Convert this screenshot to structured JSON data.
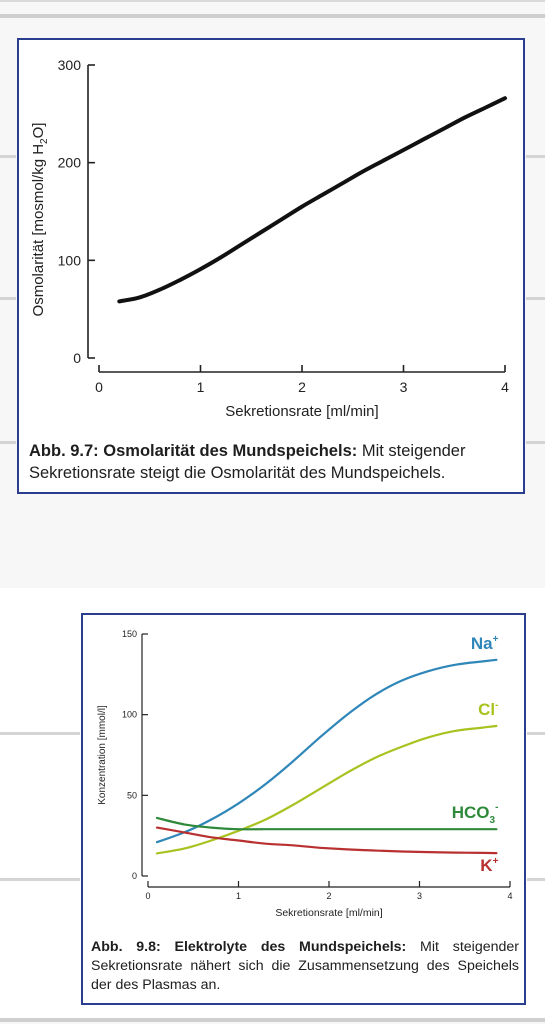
{
  "chart_data": [
    {
      "type": "line",
      "xlabel": "Sekretionsrate [ml/min]",
      "ylabel": "Osmolarität [mosmol/kg H2O]",
      "ylabel_main": "Osmolarität [mosmol/kg H",
      "ylabel_sub": "2",
      "ylabel_end": "O]",
      "xlim": [
        0,
        4
      ],
      "ylim": [
        0,
        300
      ],
      "x_ticks": [
        "0",
        "1",
        "2",
        "3",
        "4"
      ],
      "y_ticks": [
        "0",
        "100",
        "200",
        "300"
      ],
      "grid": false,
      "series": [
        {
          "color": "#111111",
          "x": [
            0.2,
            0.4,
            0.6,
            0.8,
            1.0,
            1.2,
            1.4,
            1.6,
            1.8,
            2.0,
            2.2,
            2.4,
            2.6,
            2.8,
            3.0,
            3.2,
            3.4,
            3.6,
            3.8,
            4.0
          ],
          "y": [
            58,
            62,
            70,
            80,
            91,
            103,
            116,
            129,
            142,
            155,
            167,
            179,
            191,
            202,
            213,
            224,
            235,
            246,
            256,
            266
          ]
        }
      ]
    },
    {
      "type": "line",
      "xlabel": "Sekretionsrate [ml/min]",
      "ylabel": "Konzentration [mmol/l]",
      "xlim": [
        0,
        4
      ],
      "ylim": [
        0,
        150
      ],
      "x_ticks": [
        "0",
        "1",
        "2",
        "3",
        "4"
      ],
      "y_ticks": [
        "0",
        "50",
        "100",
        "150"
      ],
      "grid": false,
      "series": [
        {
          "name": "Na+",
          "label_main": "Na",
          "label_sup": "+",
          "color": "#2f86b8",
          "x": [
            0.1,
            0.4,
            0.7,
            1.0,
            1.3,
            1.6,
            1.9,
            2.2,
            2.5,
            2.8,
            3.1,
            3.4,
            3.7,
            3.85
          ],
          "y": [
            21,
            27,
            35,
            45,
            57,
            71,
            86,
            100,
            112,
            121,
            127,
            131,
            133,
            134
          ]
        },
        {
          "name": "Cl-",
          "label_main": "Cl",
          "label_sup": "-",
          "color": "#a9c21f",
          "x": [
            0.1,
            0.4,
            0.7,
            1.0,
            1.3,
            1.6,
            1.9,
            2.2,
            2.5,
            2.8,
            3.1,
            3.4,
            3.7,
            3.85
          ],
          "y": [
            14,
            17,
            22,
            28,
            35,
            44,
            54,
            64,
            73,
            80,
            86,
            90,
            92,
            93
          ]
        },
        {
          "name": "HCO3-",
          "label_main": "HCO",
          "label_sub": "3",
          "label_sup": "-",
          "color": "#2e8a3a",
          "x": [
            0.1,
            0.4,
            0.7,
            1.0,
            1.3,
            1.6,
            1.9,
            2.2,
            2.5,
            2.8,
            3.1,
            3.4,
            3.7,
            3.85
          ],
          "y": [
            36,
            32,
            30,
            29,
            29,
            29,
            29,
            29,
            29,
            29,
            29,
            29,
            29,
            29
          ]
        },
        {
          "name": "K+",
          "label_main": "K",
          "label_sup": "+",
          "color": "#b8302f",
          "x": [
            0.1,
            0.4,
            0.7,
            1.0,
            1.3,
            1.6,
            1.9,
            2.2,
            2.5,
            2.8,
            3.1,
            3.4,
            3.7,
            3.85
          ],
          "y": [
            30,
            27,
            24,
            22,
            20,
            19,
            17.5,
            16.5,
            15.8,
            15.2,
            14.8,
            14.5,
            14.3,
            14.2
          ]
        }
      ]
    }
  ],
  "captions": {
    "fig1_bold": "Abb. 9.7: Osmolarität des Mundspeichels:",
    "fig1_text": " Mit steigender Sekretionsrate steigt die Osmolarität des Mundspeichels.",
    "fig2_bold": "Abb. 9.8: Elektrolyte des Mundspeichels:",
    "fig2_text": " Mit steigender Sekretionsrate nähert sich die Zusammensetzung des Speichels der des Plasmas an."
  },
  "colors": {
    "frame": "#2b3d8f",
    "background": "#f7f7f7"
  }
}
